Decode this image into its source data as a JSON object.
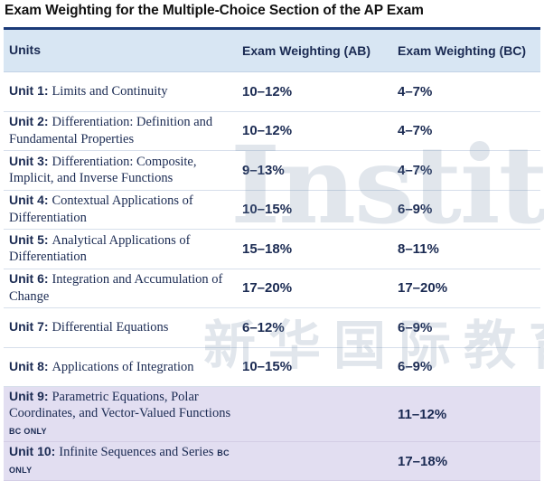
{
  "title": "Exam Weighting for the Multiple-Choice Section of the AP Exam",
  "header": {
    "units": "Units",
    "ab": "Exam Weighting (AB)",
    "bc": "Exam Weighting (BC)"
  },
  "rows": [
    {
      "unit": "Unit 1:",
      "name": "Limits and Continuity",
      "ab": "10–12%",
      "bc": "4–7%"
    },
    {
      "unit": "Unit 2:",
      "name": "Differentiation: Definition and Fundamental Properties",
      "ab": "10–12%",
      "bc": "4–7%"
    },
    {
      "unit": "Unit 3:",
      "name": "Differentiation: Composite, Implicit, and Inverse Functions",
      "ab": "9–13%",
      "bc": "4–7%"
    },
    {
      "unit": "Unit 4:",
      "name": "Contextual Applications of Differentiation",
      "ab": "10–15%",
      "bc": "6–9%"
    },
    {
      "unit": "Unit 5:",
      "name": "Analytical Applications of Differentiation",
      "ab": "15–18%",
      "bc": "8–11%"
    },
    {
      "unit": "Unit 6:",
      "name": "Integration and Accumulation of Change",
      "ab": "17–20%",
      "bc": "17–20%"
    },
    {
      "unit": "Unit 7:",
      "name": "Differential Equations",
      "ab": "6–12%",
      "bc": "6–9%"
    },
    {
      "unit": "Unit 8:",
      "name": "Applications of Integration",
      "ab": "10–15%",
      "bc": "6–9%"
    },
    {
      "unit": "Unit 9:",
      "name": "Parametric Equations, Polar Coordinates, and Vector-Valued Functions",
      "tag": "BC ONLY",
      "ab": "",
      "bc": "11–12%"
    },
    {
      "unit": "Unit 10:",
      "name": "Infinite Sequences and Series",
      "tag": "BC ONLY",
      "ab": "",
      "bc": "17–18%"
    }
  ],
  "watermark": {
    "text_en": "Institute",
    "text_cn": "新华国际教育"
  },
  "colors": {
    "header_bg": "#d8e6f3",
    "bc_only_bg": "#e2def1",
    "rule": "#1b3a78",
    "text": "#1a2a52"
  }
}
